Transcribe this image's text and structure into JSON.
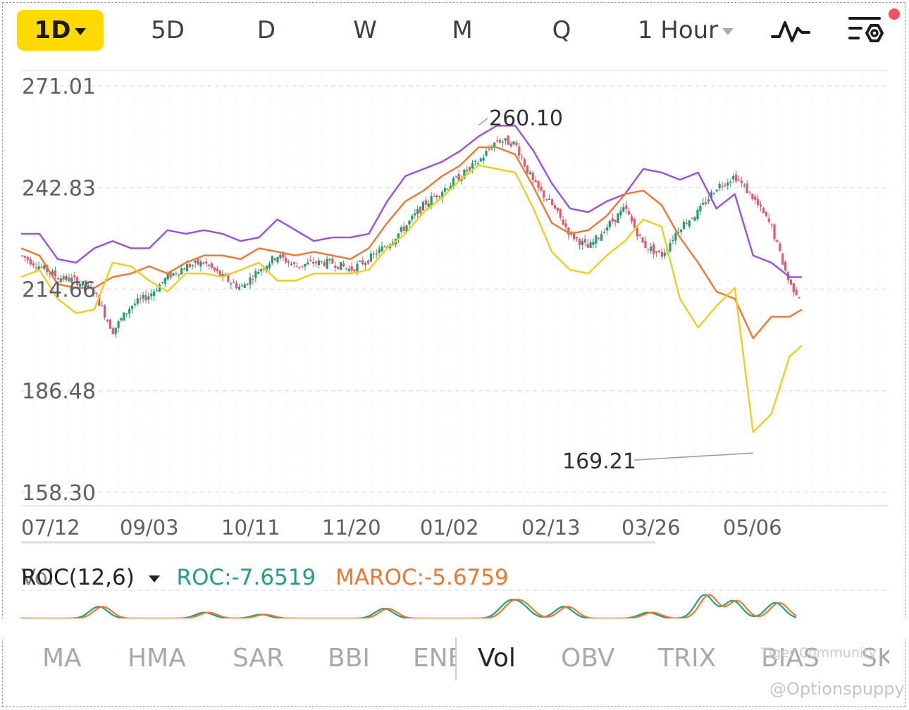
{
  "toolbar": {
    "timeframes": [
      {
        "label": "1D",
        "active": true
      },
      {
        "label": "5D"
      },
      {
        "label": "D"
      },
      {
        "label": "W"
      },
      {
        "label": "M"
      },
      {
        "label": "Q"
      }
    ],
    "interval_label": "1 Hour",
    "icons": [
      "indicator-wave-icon",
      "chart-settings-icon"
    ],
    "notification_color": "#f4515d",
    "accent": "#ffd900"
  },
  "chart_data": {
    "type": "candlestick",
    "y_ticks": [
      "271.01",
      "242.83",
      "214.66",
      "186.48",
      "158.30"
    ],
    "y_tick_values": [
      271.01,
      242.83,
      214.66,
      186.48,
      158.3
    ],
    "ylim": [
      158.3,
      271.01
    ],
    "x_ticks": [
      "07/12",
      "09/03",
      "10/11",
      "11/20",
      "01/02",
      "02/13",
      "03/26",
      "05/06"
    ],
    "annotations": [
      {
        "label": "260.10",
        "value": 260.1,
        "kind": "high",
        "near": "01/02"
      },
      {
        "label": "169.21",
        "value": 169.21,
        "kind": "low",
        "near": "03/26"
      }
    ],
    "grid": true,
    "colors": {
      "up": "#1f9d6a",
      "down": "#e9536b",
      "upper_band": "#9b4fe0",
      "middle_band": "#f0762f",
      "lower_band": "#f0cc1f"
    },
    "series": [
      {
        "kind": "price",
        "x": [
          0,
          6,
          12,
          18,
          24,
          30,
          36,
          42,
          48,
          54,
          60,
          66,
          72,
          78,
          84,
          90,
          96,
          102,
          108,
          114,
          120,
          126,
          132,
          138,
          144,
          150,
          156,
          162,
          168,
          174,
          180,
          186,
          192,
          198,
          204,
          210,
          216,
          222,
          228,
          234,
          240,
          246,
          252,
          256
        ],
        "values": [
          224,
          221,
          218,
          217,
          214,
          203,
          210,
          213,
          218,
          221,
          222,
          218,
          215,
          220,
          224,
          221,
          222,
          222,
          220,
          223,
          227,
          232,
          238,
          242,
          246,
          250,
          256,
          255,
          244,
          238,
          230,
          226,
          232,
          237,
          227,
          224,
          232,
          236,
          243,
          246,
          240,
          232,
          216,
          212
        ]
      },
      {
        "kind": "upper_band",
        "x": [
          0,
          6,
          12,
          18,
          24,
          30,
          36,
          42,
          48,
          54,
          60,
          66,
          72,
          78,
          84,
          90,
          96,
          102,
          108,
          114,
          120,
          126,
          132,
          138,
          144,
          150,
          156,
          162,
          168,
          174,
          180,
          186,
          192,
          198,
          204,
          210,
          216,
          222,
          228,
          234,
          240,
          246,
          252,
          256
        ],
        "values": [
          230,
          230,
          223,
          222,
          226,
          228,
          226,
          226,
          231,
          230,
          231,
          230,
          228,
          229,
          234,
          231,
          228,
          229,
          229,
          230,
          239,
          246,
          248,
          250,
          253,
          257,
          260,
          260,
          253,
          244,
          237,
          236,
          239,
          241,
          248,
          247,
          245,
          247,
          237,
          241,
          224,
          222,
          218,
          218
        ]
      },
      {
        "kind": "middle_band",
        "x": [
          0,
          6,
          12,
          18,
          24,
          30,
          36,
          42,
          48,
          54,
          60,
          66,
          72,
          78,
          84,
          90,
          96,
          102,
          108,
          114,
          120,
          126,
          132,
          138,
          144,
          150,
          156,
          162,
          168,
          174,
          180,
          186,
          192,
          198,
          204,
          210,
          216,
          222,
          228,
          234,
          240,
          246,
          252,
          256
        ],
        "values": [
          226,
          224,
          216,
          215,
          215,
          218,
          219,
          221,
          219,
          222,
          224,
          224,
          223,
          226,
          225,
          224,
          225,
          224,
          223,
          226,
          233,
          239,
          242,
          246,
          249,
          254,
          254,
          252,
          243,
          233,
          230,
          231,
          235,
          241,
          242,
          238,
          229,
          222,
          214,
          212,
          201,
          207,
          207,
          209
        ]
      },
      {
        "kind": "lower_band",
        "x": [
          0,
          6,
          12,
          18,
          24,
          30,
          36,
          42,
          48,
          54,
          60,
          66,
          72,
          78,
          84,
          90,
          96,
          102,
          108,
          114,
          120,
          126,
          132,
          138,
          144,
          150,
          156,
          162,
          168,
          174,
          180,
          186,
          192,
          198,
          204,
          210,
          216,
          222,
          228,
          234,
          240,
          246,
          252,
          256
        ],
        "values": [
          218,
          220,
          212,
          208,
          209,
          222,
          221,
          217,
          214,
          219,
          219,
          218,
          220,
          222,
          217,
          217,
          219,
          219,
          219,
          220,
          226,
          230,
          236,
          240,
          245,
          249,
          248,
          247,
          237,
          225,
          220,
          219,
          224,
          228,
          234,
          232,
          212,
          204,
          210,
          215,
          175,
          180,
          196,
          199
        ]
      }
    ],
    "indicator": {
      "type": "line",
      "name": "ROC(12,6)",
      "name_prefix": "ROC",
      "overlap_text": "Vol",
      "roc_label": "ROC:-7.6519",
      "maroc_label": "MAROC:-5.6759",
      "roc_value": -7.6519,
      "maroc_value": -5.6759,
      "roc_color": "#20a083",
      "maroc_color": "#f0762f"
    }
  },
  "tabs": {
    "items": [
      "MA",
      "HMA",
      "SAR",
      "BBI",
      "ENE",
      "Vol",
      "OBV",
      "TRIX",
      "BIAS",
      "SK"
    ],
    "selected": "Vol"
  },
  "watermark": {
    "community": "Tiger Community",
    "handle": "@Optionspuppy"
  }
}
